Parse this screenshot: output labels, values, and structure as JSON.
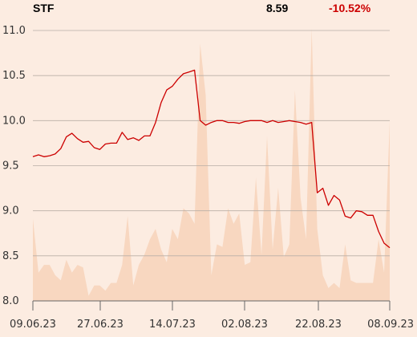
{
  "header": {
    "ticker": "STF",
    "last_price": "8.59",
    "change_pct": "-10.52%"
  },
  "colors": {
    "background": "#fcece1",
    "line": "#cc0000",
    "volume_area": "#f8d7c0",
    "grid": "#b9aea6",
    "change_negative": "#cc0000"
  },
  "chart_data": {
    "type": "line",
    "title": "",
    "xlabel": "",
    "ylabel": "",
    "x_tick_labels": [
      "09.06.23",
      "27.06.23",
      "14.07.23",
      "02.08.23",
      "22.08.23",
      "08.09.23"
    ],
    "y_tick_labels": [
      "8.0",
      "8.5",
      "9.0",
      "9.5",
      "10.0",
      "10.5",
      "11.0"
    ],
    "ylim": [
      8.0,
      11.0
    ],
    "grid": true,
    "series": [
      {
        "kind": "price",
        "values": [
          9.6,
          9.62,
          9.6,
          9.61,
          9.63,
          9.69,
          9.82,
          9.86,
          9.8,
          9.76,
          9.77,
          9.7,
          9.68,
          9.74,
          9.75,
          9.75,
          9.87,
          9.79,
          9.81,
          9.78,
          9.83,
          9.83,
          9.98,
          10.2,
          10.34,
          10.38,
          10.46,
          10.52,
          10.54,
          10.56,
          10.0,
          9.95,
          9.98,
          10.0,
          10.0,
          9.98,
          9.98,
          9.97,
          9.99,
          10.0,
          10.0,
          10.0,
          9.98,
          10.0,
          9.98,
          9.99,
          10.0,
          9.99,
          9.98,
          9.96,
          9.98,
          9.2,
          9.25,
          9.06,
          9.17,
          9.12,
          8.94,
          8.92,
          9.0,
          8.99,
          8.95,
          8.95,
          8.77,
          8.64,
          8.59
        ]
      },
      {
        "kind": "volume",
        "values": [
          0.32,
          0.11,
          0.14,
          0.14,
          0.1,
          0.08,
          0.16,
          0.11,
          0.14,
          0.13,
          0.02,
          0.06,
          0.06,
          0.04,
          0.07,
          0.07,
          0.14,
          0.33,
          0.06,
          0.14,
          0.18,
          0.24,
          0.28,
          0.2,
          0.15,
          0.28,
          0.24,
          0.36,
          0.34,
          0.3,
          1.0,
          0.8,
          0.1,
          0.22,
          0.21,
          0.36,
          0.3,
          0.34,
          0.14,
          0.15,
          0.48,
          0.18,
          0.64,
          0.2,
          0.44,
          0.17,
          0.22,
          0.82,
          0.4,
          0.24,
          1.06,
          0.28,
          0.1,
          0.05,
          0.07,
          0.05,
          0.22,
          0.08,
          0.07,
          0.07,
          0.07,
          0.07,
          0.24,
          0.11,
          0.7
        ]
      }
    ]
  }
}
